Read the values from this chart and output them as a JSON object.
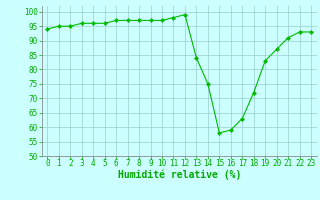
{
  "x": [
    0,
    1,
    2,
    3,
    4,
    5,
    6,
    7,
    8,
    9,
    10,
    11,
    12,
    13,
    14,
    15,
    16,
    17,
    18,
    19,
    20,
    21,
    22,
    23
  ],
  "y": [
    94,
    95,
    95,
    96,
    96,
    96,
    97,
    97,
    97,
    97,
    97,
    98,
    99,
    84,
    75,
    58,
    59,
    63,
    72,
    83,
    87,
    91,
    93,
    93
  ],
  "line_color": "#00bb00",
  "marker": "D",
  "marker_size": 2.0,
  "bg_color": "#ccffff",
  "grid_color": "#99cccc",
  "xlabel": "Humidité relative (%)",
  "xlabel_color": "#00aa00",
  "xlabel_fontsize": 7,
  "tick_color": "#00aa00",
  "tick_fontsize": 5.5,
  "ylim": [
    50,
    102
  ],
  "xlim": [
    -0.5,
    23.5
  ],
  "yticks": [
    50,
    55,
    60,
    65,
    70,
    75,
    80,
    85,
    90,
    95,
    100
  ],
  "xticks": [
    0,
    1,
    2,
    3,
    4,
    5,
    6,
    7,
    8,
    9,
    10,
    11,
    12,
    13,
    14,
    15,
    16,
    17,
    18,
    19,
    20,
    21,
    22,
    23
  ]
}
